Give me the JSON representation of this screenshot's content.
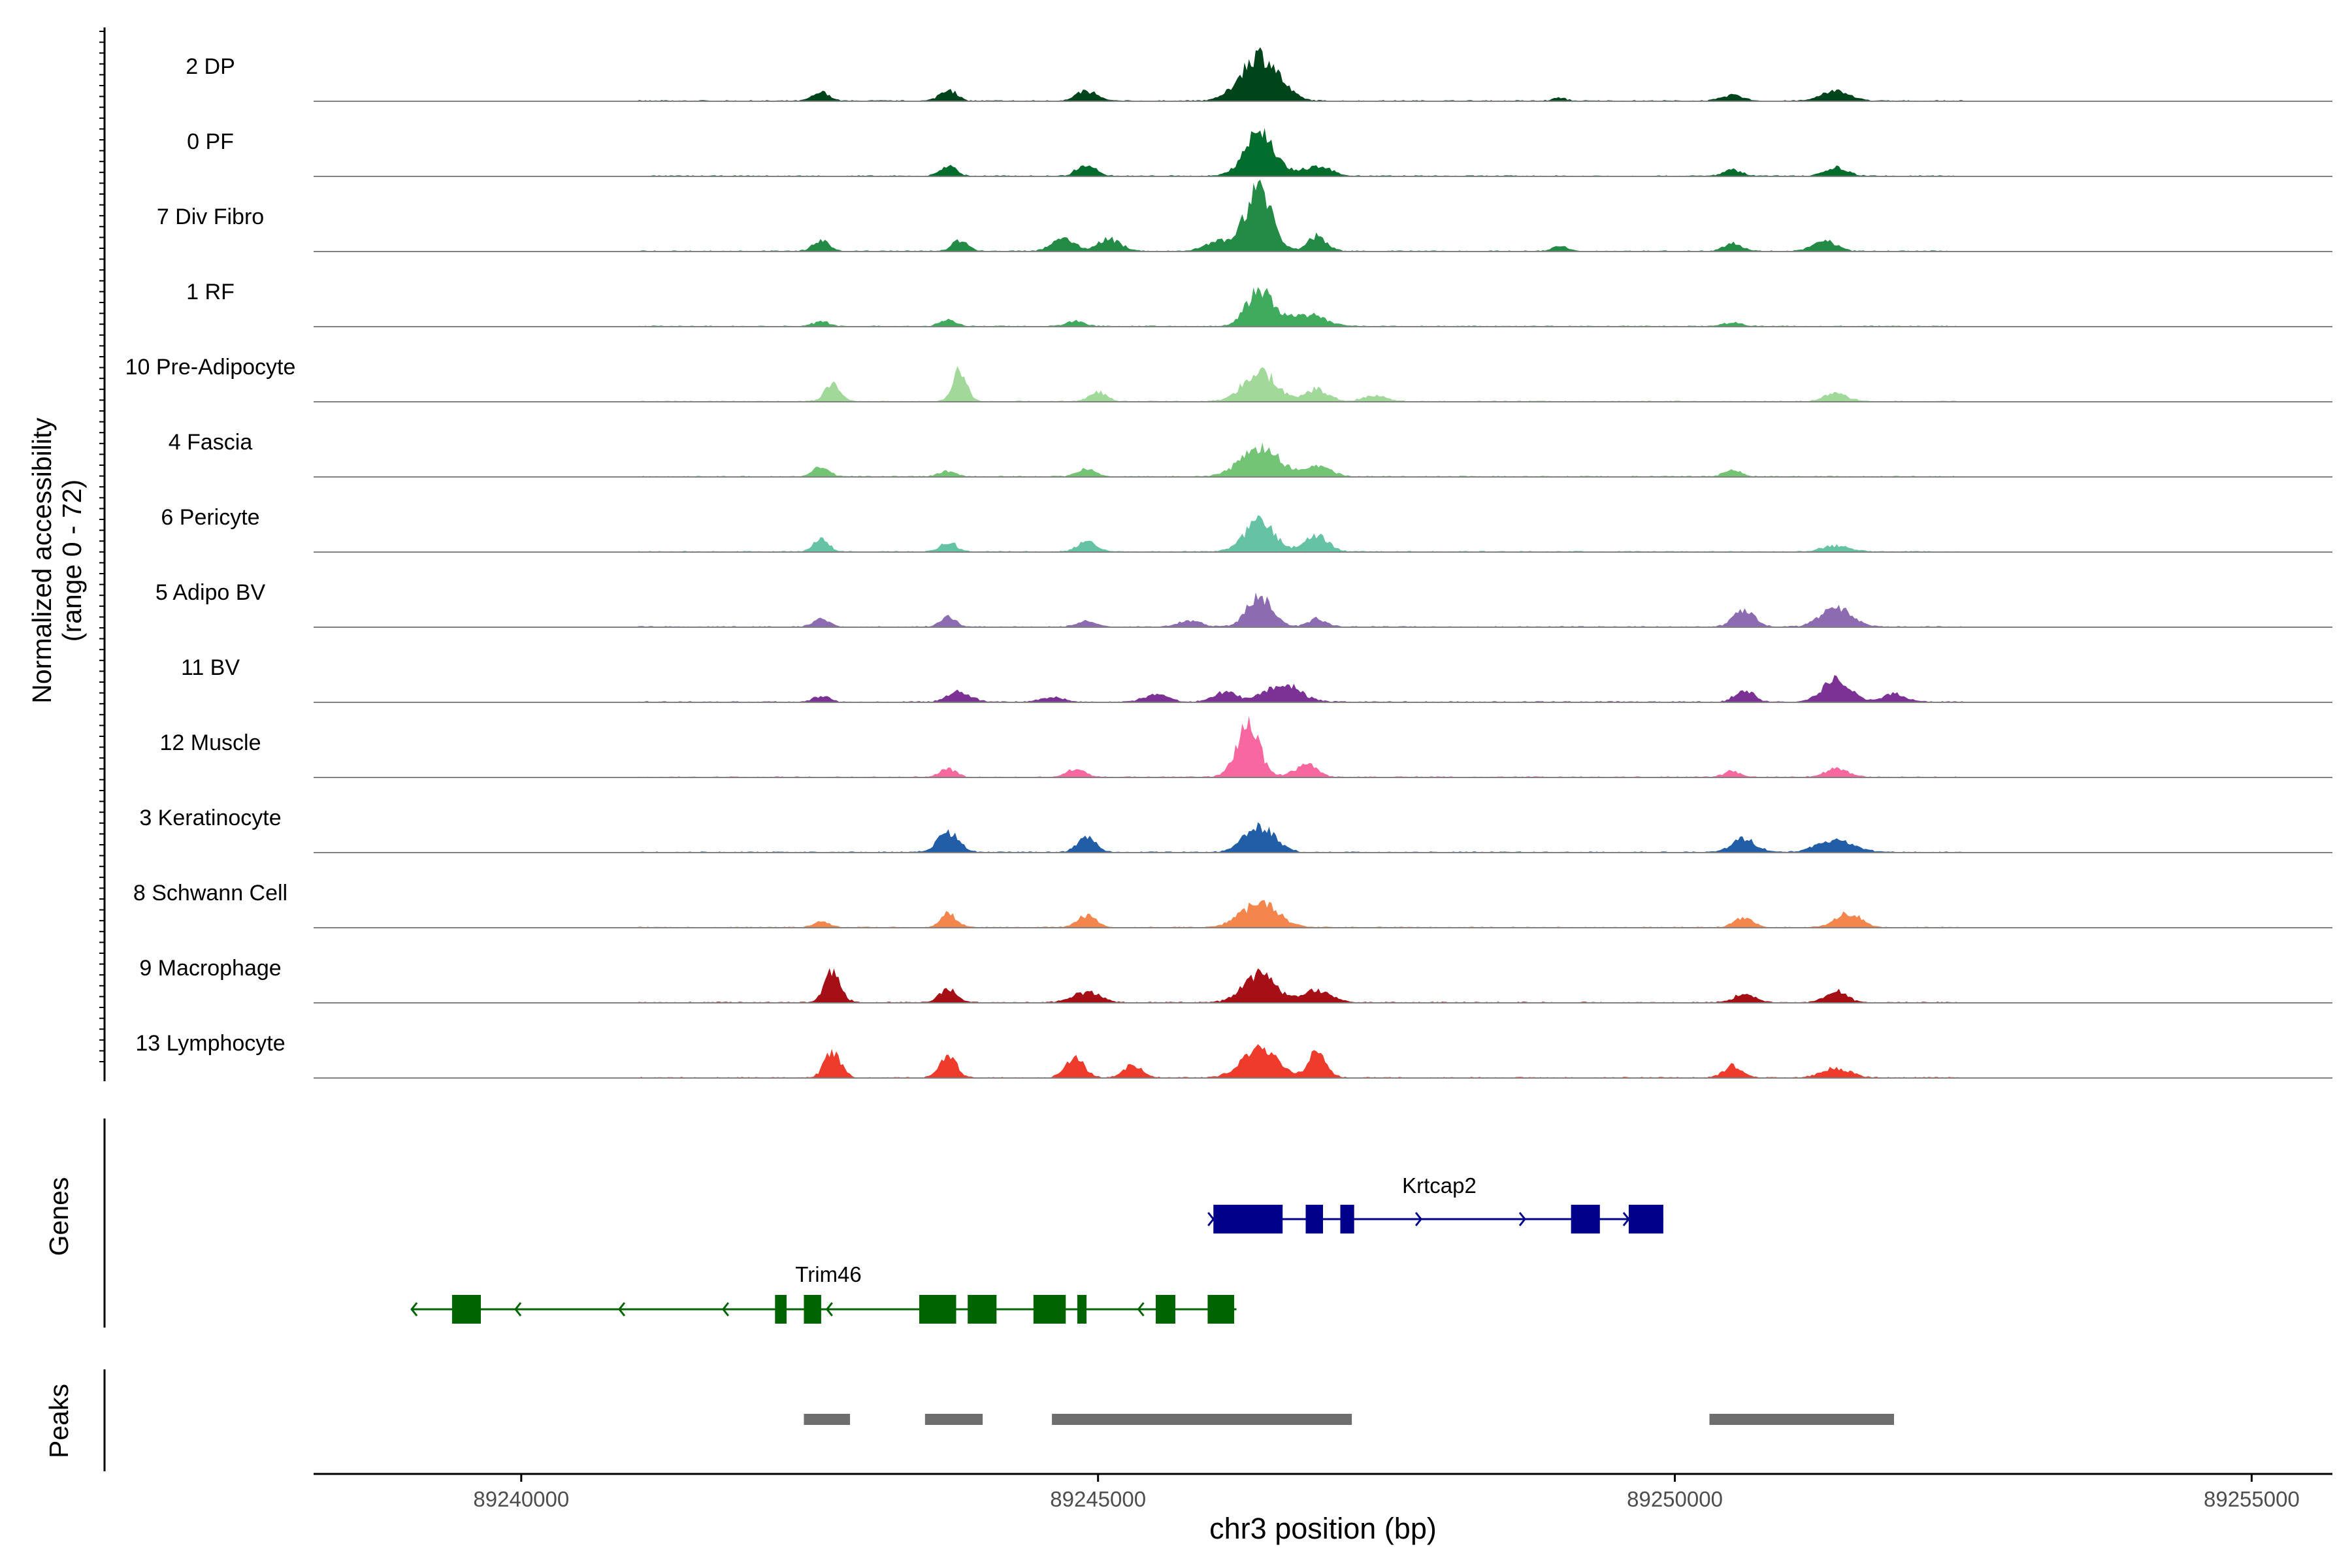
{
  "chart_data": {
    "type": "area",
    "title": "",
    "ylabel_line1": "Normalized accessibility",
    "ylabel_line2": "(range 0 - 72)",
    "xlabel": "chr3 position (bp)",
    "chromosome": "chr3",
    "xlim": [
      89238200,
      89255700
    ],
    "ylim": [
      0,
      72
    ],
    "x_ticks": [
      89240000,
      89245000,
      89250000,
      89255000
    ],
    "x_tick_labels": [
      "89240000",
      "89245000",
      "89250000",
      "89255000"
    ],
    "tracks": [
      {
        "name": "2 DP",
        "color": "#00441b",
        "peaks": [
          [
            89242600,
            9,
            70
          ],
          [
            89243700,
            12,
            70
          ],
          [
            89244900,
            10,
            90
          ],
          [
            89246400,
            46,
            160
          ],
          [
            89249000,
            3,
            60
          ],
          [
            89250500,
            6,
            90
          ],
          [
            89251400,
            10,
            120
          ]
        ]
      },
      {
        "name": "0 PF",
        "color": "#006d2c",
        "peaks": [
          [
            89243700,
            10,
            70
          ],
          [
            89244900,
            12,
            80
          ],
          [
            89246400,
            44,
            130
          ],
          [
            89246900,
            10,
            120
          ],
          [
            89250500,
            6,
            80
          ],
          [
            89251400,
            8,
            100
          ]
        ]
      },
      {
        "name": "7 Div Fibro",
        "color": "#238b45",
        "peaks": [
          [
            89242600,
            10,
            70
          ],
          [
            89243800,
            10,
            70
          ],
          [
            89244700,
            12,
            100
          ],
          [
            89245100,
            12,
            100
          ],
          [
            89246100,
            10,
            150
          ],
          [
            89246400,
            62,
            110
          ],
          [
            89246900,
            15,
            80
          ],
          [
            89249000,
            5,
            60
          ],
          [
            89250500,
            8,
            80
          ],
          [
            89251300,
            10,
            100
          ]
        ]
      },
      {
        "name": "1 RF",
        "color": "#41ab5d",
        "peaks": [
          [
            89242600,
            5,
            70
          ],
          [
            89243700,
            6,
            70
          ],
          [
            89244800,
            5,
            80
          ],
          [
            89246400,
            36,
            110
          ],
          [
            89246800,
            12,
            150
          ],
          [
            89250500,
            4,
            80
          ]
        ]
      },
      {
        "name": "10 Pre-Adipocyte",
        "color": "#a1d99b",
        "peaks": [
          [
            89242700,
            16,
            70
          ],
          [
            89243800,
            30,
            60
          ],
          [
            89245000,
            10,
            70
          ],
          [
            89246400,
            30,
            140
          ],
          [
            89246900,
            12,
            100
          ],
          [
            89247400,
            6,
            100
          ],
          [
            89251400,
            8,
            100
          ]
        ]
      },
      {
        "name": "4 Fascia",
        "color": "#74c476",
        "peaks": [
          [
            89242600,
            10,
            70
          ],
          [
            89243700,
            6,
            70
          ],
          [
            89244900,
            8,
            80
          ],
          [
            89246400,
            30,
            160
          ],
          [
            89246900,
            10,
            120
          ],
          [
            89250500,
            6,
            80
          ]
        ]
      },
      {
        "name": "6 Pericyte",
        "color": "#66c2a4",
        "peaks": [
          [
            89242600,
            12,
            70
          ],
          [
            89243700,
            10,
            70
          ],
          [
            89244900,
            10,
            80
          ],
          [
            89246400,
            30,
            130
          ],
          [
            89246900,
            16,
            100
          ],
          [
            89251400,
            6,
            120
          ]
        ]
      },
      {
        "name": "5 Adipo BV",
        "color": "#8c6bb1",
        "peaks": [
          [
            89242600,
            8,
            70
          ],
          [
            89243700,
            10,
            70
          ],
          [
            89244900,
            6,
            80
          ],
          [
            89245800,
            6,
            100
          ],
          [
            89246400,
            30,
            110
          ],
          [
            89246900,
            8,
            80
          ],
          [
            89250600,
            16,
            90
          ],
          [
            89251400,
            20,
            130
          ]
        ]
      },
      {
        "name": "11 BV",
        "color": "#7b3294",
        "peaks": [
          [
            89242600,
            6,
            70
          ],
          [
            89243800,
            10,
            100
          ],
          [
            89244600,
            5,
            100
          ],
          [
            89245500,
            8,
            100
          ],
          [
            89246100,
            10,
            100
          ],
          [
            89246600,
            18,
            150
          ],
          [
            89250600,
            12,
            80
          ],
          [
            89251400,
            22,
            120
          ],
          [
            89251900,
            8,
            100
          ]
        ]
      },
      {
        "name": "12 Muscle",
        "color": "#f768a1",
        "peaks": [
          [
            89243700,
            8,
            70
          ],
          [
            89244800,
            8,
            80
          ],
          [
            89246300,
            52,
            100
          ],
          [
            89246800,
            12,
            100
          ],
          [
            89250500,
            6,
            70
          ],
          [
            89251400,
            8,
            100
          ]
        ]
      },
      {
        "name": "3 Keratinocyte",
        "color": "#225ea8",
        "peaks": [
          [
            89243700,
            20,
            90
          ],
          [
            89244900,
            14,
            80
          ],
          [
            89246400,
            26,
            130
          ],
          [
            89250600,
            14,
            100
          ],
          [
            89251400,
            12,
            160
          ]
        ]
      },
      {
        "name": "8 Schwann Cell",
        "color": "#f4854d",
        "peaks": [
          [
            89242600,
            6,
            70
          ],
          [
            89243700,
            14,
            70
          ],
          [
            89244900,
            12,
            80
          ],
          [
            89246400,
            24,
            160
          ],
          [
            89250600,
            10,
            80
          ],
          [
            89251500,
            14,
            110
          ]
        ]
      },
      {
        "name": "9 Macrophage",
        "color": "#a50f15",
        "peaks": [
          [
            89242700,
            30,
            70
          ],
          [
            89243700,
            14,
            70
          ],
          [
            89244900,
            10,
            120
          ],
          [
            89246400,
            28,
            140
          ],
          [
            89246900,
            12,
            120
          ],
          [
            89250600,
            8,
            90
          ],
          [
            89251400,
            12,
            90
          ]
        ]
      },
      {
        "name": "13 Lymphocyte",
        "color": "#ef3b2c",
        "peaks": [
          [
            89242700,
            26,
            70
          ],
          [
            89243700,
            22,
            70
          ],
          [
            89244800,
            20,
            80
          ],
          [
            89245300,
            12,
            80
          ],
          [
            89246400,
            30,
            150
          ],
          [
            89246900,
            24,
            80
          ],
          [
            89250500,
            12,
            80
          ],
          [
            89251400,
            10,
            120
          ]
        ]
      }
    ],
    "genes": [
      {
        "name": "Krtcap2",
        "strand": "+",
        "color": "#00008b",
        "start": 89246000,
        "end": 89249900,
        "exons": [
          [
            89246000,
            89246600
          ],
          [
            89246800,
            89246950
          ],
          [
            89247100,
            89247220
          ],
          [
            89249100,
            89249350
          ],
          [
            89249600,
            89249900
          ]
        ]
      },
      {
        "name": "Trim46",
        "strand": "-",
        "color": "#006400",
        "start": 89239050,
        "end": 89246200,
        "exons": [
          [
            89239400,
            89239650
          ],
          [
            89242200,
            89242300
          ],
          [
            89242450,
            89242600
          ],
          [
            89243450,
            89243770
          ],
          [
            89243870,
            89244120
          ],
          [
            89244440,
            89244720
          ],
          [
            89244820,
            89244900
          ],
          [
            89245500,
            89245670
          ],
          [
            89245950,
            89246180
          ]
        ]
      }
    ],
    "peaks": [
      [
        89242450,
        89242850
      ],
      [
        89243500,
        89244000
      ],
      [
        89244600,
        89247200
      ],
      [
        89250300,
        89251900
      ]
    ],
    "row_labels": {
      "genes": "Genes",
      "peaks": "Peaks"
    }
  }
}
